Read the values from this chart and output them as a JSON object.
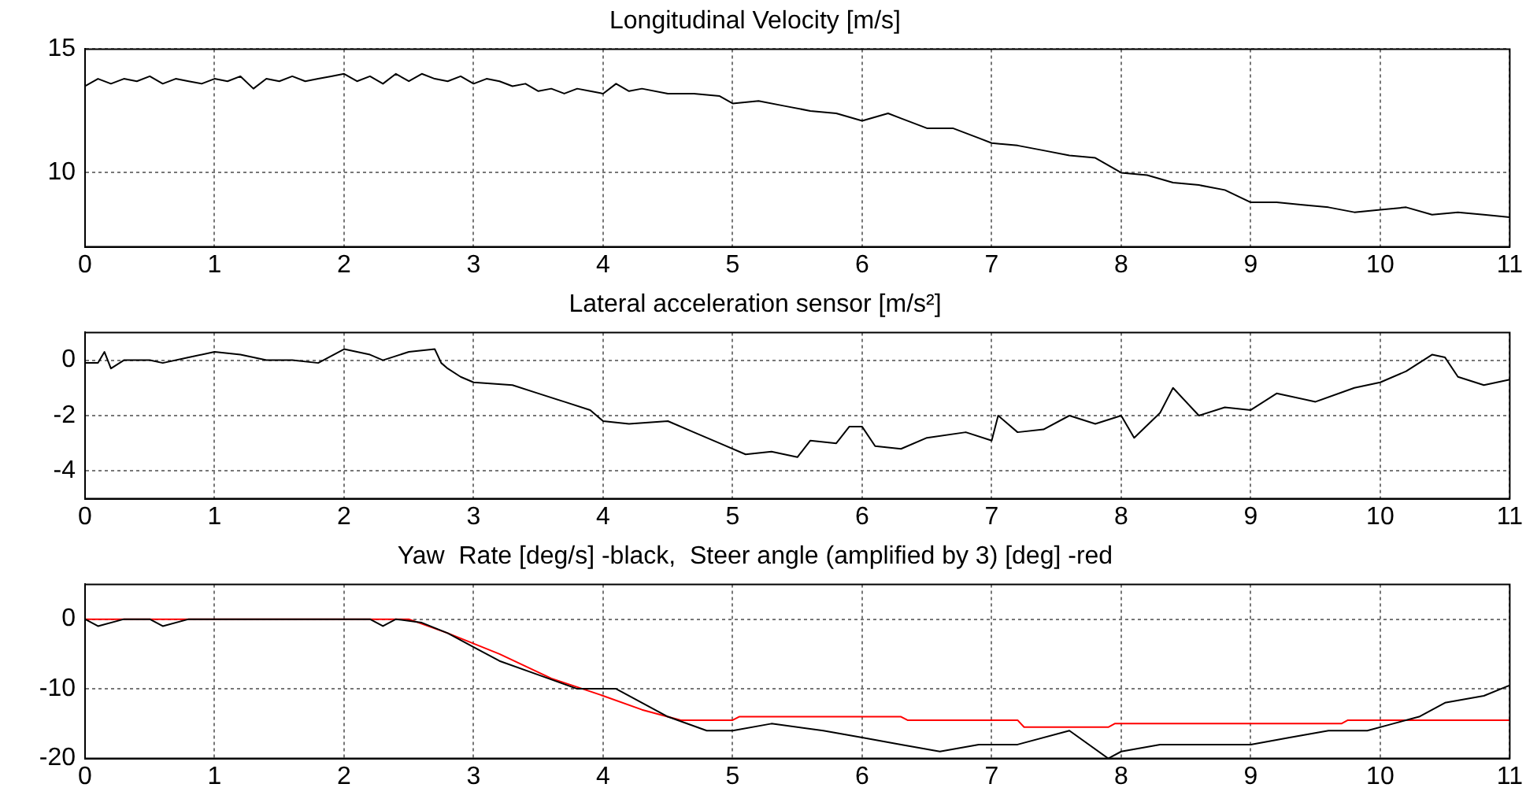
{
  "chart_data": [
    {
      "type": "line",
      "title": "Longitudinal Velocity [m/s]",
      "xlim": [
        0,
        11
      ],
      "xticks": [
        0,
        1,
        2,
        3,
        4,
        5,
        6,
        7,
        8,
        9,
        10,
        11
      ],
      "ylim": [
        7,
        15
      ],
      "yticks": [
        10,
        15
      ],
      "grid": true,
      "legend": false,
      "marker": "none",
      "line_style": "solid",
      "x": [
        0,
        0.1,
        0.2,
        0.3,
        0.4,
        0.5,
        0.6,
        0.7,
        0.8,
        0.9,
        1.0,
        1.1,
        1.2,
        1.3,
        1.4,
        1.5,
        1.6,
        1.7,
        1.8,
        1.9,
        2.0,
        2.1,
        2.2,
        2.3,
        2.4,
        2.5,
        2.6,
        2.7,
        2.8,
        2.9,
        3.0,
        3.1,
        3.2,
        3.3,
        3.4,
        3.5,
        3.6,
        3.7,
        3.8,
        3.9,
        4.0,
        4.1,
        4.2,
        4.3,
        4.5,
        4.7,
        4.9,
        5.0,
        5.2,
        5.4,
        5.6,
        5.8,
        6.0,
        6.2,
        6.3,
        6.5,
        6.7,
        6.9,
        7.0,
        7.2,
        7.4,
        7.6,
        7.8,
        8.0,
        8.2,
        8.4,
        8.6,
        8.8,
        9.0,
        9.2,
        9.4,
        9.6,
        9.8,
        10.0,
        10.2,
        10.4,
        10.6,
        10.8,
        11.0
      ],
      "series": [
        {
          "color": "#000000",
          "values": [
            13.5,
            13.8,
            13.6,
            13.8,
            13.7,
            13.9,
            13.6,
            13.8,
            13.7,
            13.6,
            13.8,
            13.7,
            13.9,
            13.4,
            13.8,
            13.7,
            13.9,
            13.7,
            13.8,
            13.9,
            14.0,
            13.7,
            13.9,
            13.6,
            14.0,
            13.7,
            14.0,
            13.8,
            13.7,
            13.9,
            13.6,
            13.8,
            13.7,
            13.5,
            13.6,
            13.3,
            13.4,
            13.2,
            13.4,
            13.3,
            13.2,
            13.6,
            13.3,
            13.4,
            13.2,
            13.2,
            13.1,
            12.8,
            12.9,
            12.7,
            12.5,
            12.4,
            12.1,
            12.4,
            12.2,
            11.8,
            11.8,
            11.4,
            11.2,
            11.1,
            10.9,
            10.7,
            10.6,
            10.0,
            9.9,
            9.6,
            9.5,
            9.3,
            8.8,
            8.8,
            8.7,
            8.6,
            8.4,
            8.5,
            8.6,
            8.3,
            8.4,
            8.3,
            8.2
          ]
        }
      ]
    },
    {
      "type": "line",
      "title": "Lateral acceleration sensor [m/s²]",
      "xlim": [
        0,
        11
      ],
      "xticks": [
        0,
        1,
        2,
        3,
        4,
        5,
        6,
        7,
        8,
        9,
        10,
        11
      ],
      "ylim": [
        -5,
        1
      ],
      "yticks": [
        -4,
        -2,
        0
      ],
      "grid": true,
      "legend": false,
      "marker": "none",
      "line_style": "solid",
      "x": [
        0,
        0.1,
        0.15,
        0.2,
        0.3,
        0.5,
        0.6,
        0.8,
        1.0,
        1.2,
        1.4,
        1.6,
        1.8,
        2.0,
        2.2,
        2.3,
        2.5,
        2.7,
        2.75,
        2.8,
        2.9,
        3.0,
        3.3,
        3.5,
        3.7,
        3.9,
        4.0,
        4.2,
        4.5,
        4.7,
        4.9,
        5.1,
        5.3,
        5.5,
        5.6,
        5.8,
        5.9,
        6.0,
        6.1,
        6.3,
        6.5,
        6.8,
        7.0,
        7.05,
        7.2,
        7.4,
        7.6,
        7.8,
        8.0,
        8.1,
        8.3,
        8.4,
        8.6,
        8.8,
        9.0,
        9.2,
        9.5,
        9.8,
        10.0,
        10.2,
        10.4,
        10.5,
        10.6,
        10.8,
        11.0
      ],
      "series": [
        {
          "color": "#000000",
          "values": [
            -0.1,
            -0.1,
            0.3,
            -0.3,
            0,
            0,
            -0.1,
            0.1,
            0.3,
            0.2,
            0,
            0,
            -0.1,
            0.4,
            0.2,
            0,
            0.3,
            0.4,
            -0.1,
            -0.3,
            -0.6,
            -0.8,
            -0.9,
            -1.2,
            -1.5,
            -1.8,
            -2.2,
            -2.3,
            -2.2,
            -2.6,
            -3.0,
            -3.4,
            -3.3,
            -3.5,
            -2.9,
            -3.0,
            -2.4,
            -2.4,
            -3.1,
            -3.2,
            -2.8,
            -2.6,
            -2.9,
            -2.0,
            -2.6,
            -2.5,
            -2.0,
            -2.3,
            -2.0,
            -2.8,
            -1.9,
            -1.0,
            -2.0,
            -1.7,
            -1.8,
            -1.2,
            -1.5,
            -1.0,
            -0.8,
            -0.4,
            0.2,
            0.1,
            -0.6,
            -0.9,
            -0.7
          ]
        }
      ]
    },
    {
      "type": "line",
      "title": "Yaw  Rate [deg/s] -black,  Steer angle (amplified by 3) [deg] -red",
      "xlim": [
        0,
        11
      ],
      "xticks": [
        0,
        1,
        2,
        3,
        4,
        5,
        6,
        7,
        8,
        9,
        10,
        11
      ],
      "ylim": [
        -20,
        5
      ],
      "yticks": [
        -20,
        -10,
        0
      ],
      "grid": true,
      "legend": false,
      "marker": "none",
      "line_style": "solid",
      "series": [
        {
          "color": "#000000",
          "x": [
            0,
            0.1,
            0.3,
            0.5,
            0.6,
            0.8,
            1.0,
            2.2,
            2.3,
            2.4,
            2.6,
            2.8,
            3.0,
            3.2,
            3.5,
            3.8,
            4.1,
            4.3,
            4.5,
            4.8,
            5.0,
            5.3,
            5.7,
            6.0,
            6.3,
            6.6,
            6.9,
            7.2,
            7.6,
            7.9,
            8.0,
            8.3,
            8.6,
            9.0,
            9.3,
            9.6,
            9.9,
            10.1,
            10.3,
            10.5,
            10.8,
            11.0
          ],
          "values": [
            0,
            -1,
            0,
            0,
            -1,
            0,
            0,
            0,
            -1,
            0,
            -0.5,
            -2,
            -4,
            -6,
            -8,
            -10,
            -10,
            -12,
            -14,
            -16,
            -16,
            -15,
            -16,
            -17,
            -18,
            -19,
            -18,
            -18,
            -16,
            -20,
            -19,
            -18,
            -18,
            -18,
            -17,
            -16,
            -16,
            -15,
            -14,
            -12,
            -11,
            -9.5
          ]
        },
        {
          "color": "#ff0000",
          "x": [
            0,
            2.5,
            2.8,
            3.2,
            3.6,
            4.0,
            4.3,
            4.6,
            5.0,
            5.05,
            6.3,
            6.35,
            7.2,
            7.25,
            7.9,
            7.95,
            9.7,
            9.75,
            11.0
          ],
          "values": [
            0,
            0,
            -2,
            -5,
            -8.5,
            -11,
            -13,
            -14.5,
            -14.5,
            -14,
            -14,
            -14.5,
            -14.5,
            -15.5,
            -15.5,
            -15,
            -15,
            -14.5,
            -14.5
          ]
        }
      ]
    }
  ]
}
